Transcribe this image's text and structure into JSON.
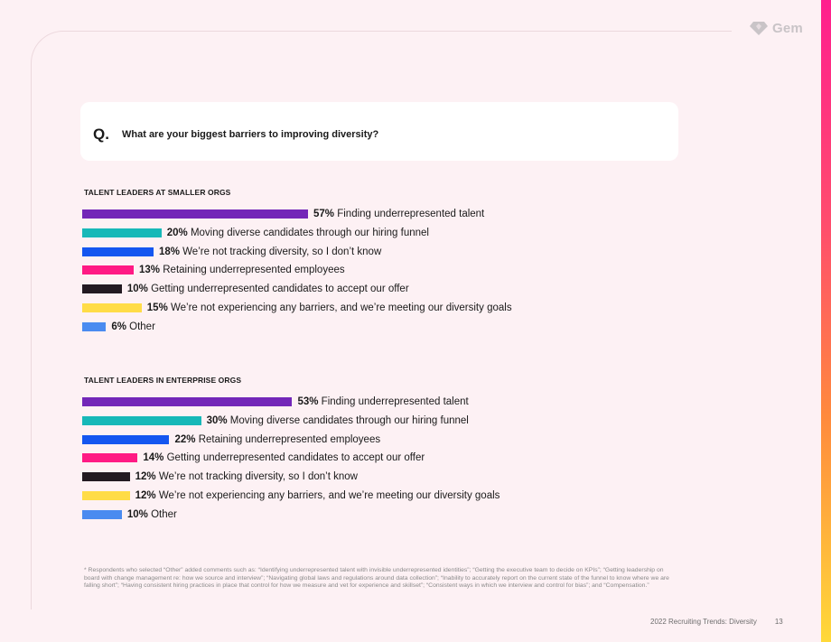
{
  "brand": {
    "logo_text": "Gem"
  },
  "question": {
    "prefix": "Q.",
    "text": "What are your biggest barriers to improving diversity?"
  },
  "chart_data": [
    {
      "type": "bar",
      "orientation": "horizontal",
      "title": "TALENT LEADERS AT SMALLER ORGS",
      "xlim": [
        0,
        100
      ],
      "bars": [
        {
          "value": 57,
          "label": "57%",
          "category": "Finding underrepresented talent",
          "color": "#7327b8"
        },
        {
          "value": 20,
          "label": "20%",
          "category": "Moving diverse candidates through our hiring funnel",
          "color": "#17b8b8"
        },
        {
          "value": 18,
          "label": "18%",
          "category": "We’re not tracking diversity, so I don’t know",
          "color": "#1456f0"
        },
        {
          "value": 13,
          "label": "13%",
          "category": "Retaining underrepresented employees",
          "color": "#ff1a84"
        },
        {
          "value": 10,
          "label": "10%",
          "category": "Getting underrepresented candidates to accept our offer",
          "color": "#231a22"
        },
        {
          "value": 15,
          "label": "15%",
          "category": "We’re not experiencing any barriers, and we’re meeting our diversity goals",
          "color": "#ffdc47"
        },
        {
          "value": 6,
          "label": "6%",
          "category": "Other",
          "color": "#4a8bf0"
        }
      ]
    },
    {
      "type": "bar",
      "orientation": "horizontal",
      "title": "TALENT LEADERS IN ENTERPRISE ORGS",
      "xlim": [
        0,
        100
      ],
      "bars": [
        {
          "value": 53,
          "label": "53%",
          "category": "Finding underrepresented talent",
          "color": "#7327b8"
        },
        {
          "value": 30,
          "label": "30%",
          "category": "Moving diverse candidates through our hiring funnel",
          "color": "#17b8b8"
        },
        {
          "value": 22,
          "label": "22%",
          "category": "Retaining underrepresented employees",
          "color": "#1456f0"
        },
        {
          "value": 14,
          "label": "14%",
          "category": "Getting underrepresented candidates to accept our offer",
          "color": "#ff1a84"
        },
        {
          "value": 12,
          "label": "12%",
          "category": "We’re not tracking diversity, so I don’t know",
          "color": "#231a22"
        },
        {
          "value": 12,
          "label": "12%",
          "category": "We’re not experiencing any barriers, and we’re meeting our diversity goals",
          "color": "#ffdc47"
        },
        {
          "value": 10,
          "label": "10%",
          "category": "Other",
          "color": "#4a8bf0"
        }
      ]
    }
  ],
  "footnote": "* Respondents who selected “Other” added comments such as: “Identifying underrepresented talent with invisible underrepresented identities”; “Getting the executive team to decide on KPIs”; “Getting leadership on board with change management re: how we source and interview”; “Navigating global laws and regulations around data collection”; “Inability to accurately report on the current state of the funnel to know where we are falling short”; “Having consistent hiring practices in place that control for how we measure and vet for experience and skillset”; “Consistent ways in which we interview and control for bias”; and “Compensation.”",
  "footer": {
    "report": "2022 Recruiting Trends: Diversity",
    "page": "13"
  }
}
